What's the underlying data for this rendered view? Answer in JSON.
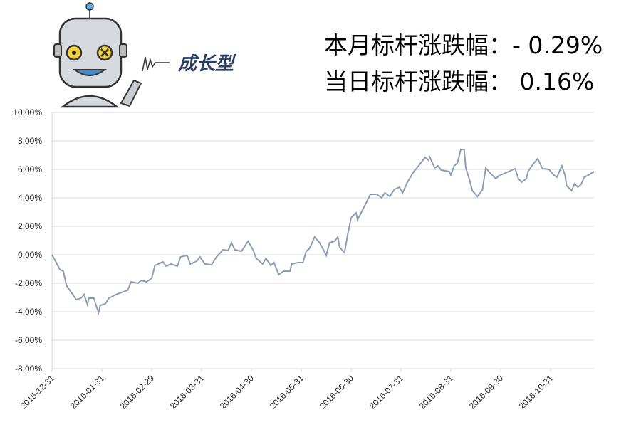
{
  "logo_text": "成长型",
  "chart_data": {
    "type": "line",
    "annotations": [
      "本月标杆涨跌幅：- 0.29%",
      "当日标杆涨跌幅：  0.16%"
    ],
    "x": [
      "2015-12-31",
      "2016-01-05",
      "2016-01-07",
      "2016-01-09",
      "2016-01-12",
      "2016-01-13",
      "2016-01-15",
      "2016-01-18",
      "2016-01-20",
      "2016-01-22",
      "2016-01-23",
      "2016-01-26",
      "2016-01-28",
      "2016-01-29",
      "2016-01-30",
      "2016-02-02",
      "2016-02-04",
      "2016-02-09",
      "2016-02-15",
      "2016-02-17",
      "2016-02-21",
      "2016-02-23",
      "2016-02-26",
      "2016-02-29",
      "2016-03-02",
      "2016-03-07",
      "2016-03-09",
      "2016-03-12",
      "2016-03-16",
      "2016-03-18",
      "2016-03-22",
      "2016-03-24",
      "2016-03-28",
      "2016-03-30",
      "2016-04-02",
      "2016-04-06",
      "2016-04-09",
      "2016-04-13",
      "2016-04-16",
      "2016-04-18",
      "2016-04-20",
      "2016-04-24",
      "2016-04-28",
      "2016-05-01",
      "2016-05-03",
      "2016-05-07",
      "2016-05-09",
      "2016-05-12",
      "2016-05-14",
      "2016-05-17",
      "2016-05-20",
      "2016-05-24",
      "2016-05-25",
      "2016-05-29",
      "2016-06-01",
      "2016-06-03",
      "2016-06-05",
      "2016-06-08",
      "2016-06-11",
      "2016-06-14",
      "2016-06-15",
      "2016-06-17",
      "2016-06-20",
      "2016-06-22",
      "2016-06-23",
      "2016-06-26",
      "2016-06-28",
      "2016-06-30",
      "2016-07-03",
      "2016-07-04",
      "2016-07-08",
      "2016-07-12",
      "2016-07-16",
      "2016-07-19",
      "2016-07-21",
      "2016-07-24",
      "2016-07-27",
      "2016-07-30",
      "2016-08-01",
      "2016-08-04",
      "2016-08-08",
      "2016-08-11",
      "2016-08-15",
      "2016-08-17",
      "2016-08-18",
      "2016-08-21",
      "2016-08-23",
      "2016-08-25",
      "2016-08-30",
      "2016-08-31",
      "2016-09-02",
      "2016-09-04",
      "2016-09-06",
      "2016-09-08",
      "2016-09-09",
      "2016-09-11",
      "2016-09-13",
      "2016-09-16",
      "2016-09-19",
      "2016-09-21",
      "2016-09-24",
      "2016-09-27",
      "2016-09-29",
      "2016-10-03",
      "2016-10-09",
      "2016-10-11",
      "2016-10-13",
      "2016-10-16",
      "2016-10-17",
      "2016-10-20",
      "2016-10-23",
      "2016-10-26",
      "2016-10-30",
      "2016-11-02",
      "2016-11-04",
      "2016-11-07",
      "2016-11-09",
      "2016-11-10",
      "2016-11-13",
      "2016-11-15",
      "2016-11-17",
      "2016-11-19",
      "2016-11-21",
      "2016-11-25",
      "2016-11-27"
    ],
    "series": [
      {
        "color": "#8c9db3",
        "values": [
          0,
          -1.05,
          -1.15,
          -2.15,
          -2.65,
          -2.8,
          -3.15,
          -3.05,
          -2.8,
          -3.5,
          -3.05,
          -3.05,
          -3.75,
          -4.05,
          -3.55,
          -3.45,
          -3.05,
          -2.75,
          -2.5,
          -1.9,
          -2.0,
          -1.8,
          -1.9,
          -1.65,
          -0.75,
          -0.5,
          -0.8,
          -0.65,
          -0.8,
          -0.15,
          -0.05,
          -0.65,
          -0.45,
          -0.15,
          -0.65,
          -0.7,
          -0.15,
          0.35,
          0.3,
          0.85,
          0.35,
          0.25,
          0.95,
          0.35,
          -0.25,
          -0.65,
          -0.25,
          -0.75,
          -0.55,
          -1.4,
          -1.15,
          -1.15,
          -0.65,
          -0.55,
          -0.55,
          0.25,
          0.45,
          1.25,
          0.85,
          0.2,
          -0.05,
          0.85,
          0.95,
          1.25,
          0.55,
          0.15,
          1.45,
          2.6,
          2.95,
          2.45,
          3.35,
          4.25,
          4.25,
          4.0,
          4.35,
          4.1,
          4.6,
          4.75,
          4.35,
          5.1,
          5.85,
          6.25,
          6.85,
          6.65,
          6.85,
          6.1,
          6.25,
          5.95,
          5.85,
          5.6,
          6.25,
          6.45,
          7.4,
          7.4,
          6.1,
          5.35,
          4.5,
          4.1,
          4.55,
          6.1,
          5.7,
          5.35,
          5.55,
          5.75,
          6.05,
          5.35,
          5.1,
          5.35,
          5.85,
          6.35,
          6.75,
          6.05,
          6.0,
          5.6,
          5.45,
          6.25,
          5.6,
          4.85,
          4.5,
          5.0,
          4.75,
          4.95,
          5.45,
          5.7,
          5.85
        ]
      }
    ],
    "xlim": [
      "2015-12-31",
      "2016-11-27"
    ],
    "xticks": [
      "2015-12-31",
      "2016-01-31",
      "2016-02-29",
      "2016-03-31",
      "2016-04-30",
      "2016-05-31",
      "2016-06-30",
      "2016-07-31",
      "2016-08-31",
      "2016-09-30",
      "2016-10-31"
    ],
    "ylim": [
      -8,
      10
    ],
    "yticks": [
      {
        "value": 10,
        "label": "10.00%"
      },
      {
        "value": 8,
        "label": "8.00%"
      },
      {
        "value": 6,
        "label": "6.00%"
      },
      {
        "value": 4,
        "label": "4.00%"
      },
      {
        "value": 2,
        "label": "2.00%"
      },
      {
        "value": 0,
        "label": "0.00%"
      },
      {
        "value": -2,
        "label": "-2.00%"
      },
      {
        "value": -4,
        "label": "-4.00%"
      },
      {
        "value": -6,
        "label": "-6.00%"
      },
      {
        "value": -8,
        "label": "-8.00%"
      }
    ],
    "grid": true
  }
}
